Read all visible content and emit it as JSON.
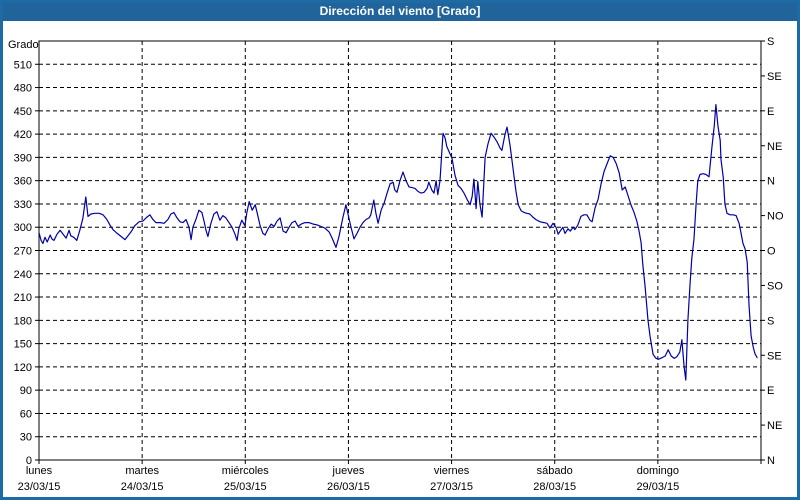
{
  "window": {
    "title": "Dirección del viento [Grado]"
  },
  "colors": {
    "titlebar": "#2268a2",
    "frame": "#1e6aa5",
    "series_line": "#0000a8",
    "grid": "#000000",
    "background": "#ffffff",
    "text": "#000000",
    "title_text": "#ffffff"
  },
  "chart_data": {
    "type": "line",
    "title": "Dirección del viento [Grado]",
    "ylabel": "Grado",
    "grid": true,
    "y_axis": {
      "min": 0,
      "max": 540,
      "tick_step": 30,
      "tick_labels": [
        0,
        30,
        60,
        90,
        120,
        150,
        180,
        210,
        240,
        270,
        300,
        330,
        360,
        390,
        420,
        450,
        480,
        510
      ]
    },
    "right_axis": {
      "tick_step": 45,
      "ticks": [
        {
          "value": 540,
          "label": "S"
        },
        {
          "value": 495,
          "label": "SE"
        },
        {
          "value": 450,
          "label": "E"
        },
        {
          "value": 405,
          "label": "NE"
        },
        {
          "value": 360,
          "label": "N"
        },
        {
          "value": 315,
          "label": "NO"
        },
        {
          "value": 270,
          "label": "O"
        },
        {
          "value": 225,
          "label": "SO"
        },
        {
          "value": 180,
          "label": "S"
        },
        {
          "value": 135,
          "label": "SE"
        },
        {
          "value": 90,
          "label": "E"
        },
        {
          "value": 45,
          "label": "NE"
        },
        {
          "value": 0,
          "label": "N"
        }
      ]
    },
    "x_axis": {
      "unit": "hours",
      "min": 0,
      "max": 168,
      "day_boundaries": [
        0,
        24,
        48,
        72,
        96,
        120,
        144,
        168
      ],
      "days": [
        {
          "name": "lunes",
          "date": "23/03/15",
          "t": 0
        },
        {
          "name": "martes",
          "date": "24/03/15",
          "t": 24
        },
        {
          "name": "miércoles",
          "date": "25/03/15",
          "t": 48
        },
        {
          "name": "jueves",
          "date": "26/03/15",
          "t": 72
        },
        {
          "name": "viernes",
          "date": "27/03/15",
          "t": 96
        },
        {
          "name": "sábado",
          "date": "28/03/15",
          "t": 120
        },
        {
          "name": "domingo",
          "date": "29/03/15",
          "t": 144
        }
      ]
    },
    "series": [
      {
        "name": "Dirección del viento",
        "points": [
          [
            0,
            293
          ],
          [
            0.5,
            283
          ],
          [
            0.9,
            279
          ],
          [
            1.4,
            287
          ],
          [
            1.9,
            281
          ],
          [
            2.6,
            290
          ],
          [
            3,
            285
          ],
          [
            3.5,
            283
          ],
          [
            4.2,
            291
          ],
          [
            4.9,
            296
          ],
          [
            5.6,
            291
          ],
          [
            6.3,
            286
          ],
          [
            7,
            296
          ],
          [
            7.4,
            289
          ],
          [
            8.1,
            287
          ],
          [
            8.8,
            283
          ],
          [
            9.5,
            296
          ],
          [
            10.2,
            311
          ],
          [
            10.9,
            339
          ],
          [
            11.4,
            314
          ],
          [
            12.1,
            317
          ],
          [
            13,
            318
          ],
          [
            14,
            318
          ],
          [
            14.9,
            316
          ],
          [
            15.8,
            310
          ],
          [
            16.5,
            303
          ],
          [
            17.2,
            297
          ],
          [
            18.2,
            292
          ],
          [
            19.1,
            288
          ],
          [
            20,
            284
          ],
          [
            20.7,
            289
          ],
          [
            21.4,
            294
          ],
          [
            22.3,
            302
          ],
          [
            23.3,
            307
          ],
          [
            24.2,
            308
          ],
          [
            25.1,
            313
          ],
          [
            25.8,
            316
          ],
          [
            26.5,
            310
          ],
          [
            27.2,
            306
          ],
          [
            28.2,
            306
          ],
          [
            29.1,
            305
          ],
          [
            30,
            310
          ],
          [
            30.7,
            317
          ],
          [
            31.4,
            319
          ],
          [
            32.1,
            312
          ],
          [
            32.8,
            307
          ],
          [
            33.5,
            306
          ],
          [
            34.2,
            310
          ],
          [
            34.9,
            300
          ],
          [
            35.4,
            284
          ],
          [
            35.8,
            300
          ],
          [
            36.5,
            310
          ],
          [
            37.2,
            322
          ],
          [
            37.9,
            319
          ],
          [
            38.4,
            308
          ],
          [
            38.9,
            295
          ],
          [
            39.3,
            288
          ],
          [
            40,
            305
          ],
          [
            40.7,
            317
          ],
          [
            41.4,
            320
          ],
          [
            42.1,
            309
          ],
          [
            42.8,
            315
          ],
          [
            43.5,
            312
          ],
          [
            44.2,
            306
          ],
          [
            44.9,
            300
          ],
          [
            45.6,
            291
          ],
          [
            46.1,
            283
          ],
          [
            46.5,
            298
          ],
          [
            47.2,
            309
          ],
          [
            47.9,
            302
          ],
          [
            48.4,
            320
          ],
          [
            48.9,
            333
          ],
          [
            49.6,
            322
          ],
          [
            50.3,
            329
          ],
          [
            50.7,
            320
          ],
          [
            51.4,
            303
          ],
          [
            52.1,
            292
          ],
          [
            52.6,
            290
          ],
          [
            53.3,
            298
          ],
          [
            54,
            304
          ],
          [
            54.7,
            301
          ],
          [
            55.4,
            308
          ],
          [
            56.1,
            312
          ],
          [
            56.8,
            295
          ],
          [
            57.5,
            293
          ],
          [
            58.2,
            300
          ],
          [
            58.9,
            306
          ],
          [
            59.6,
            308
          ],
          [
            60.3,
            301
          ],
          [
            61,
            304
          ],
          [
            61.9,
            306
          ],
          [
            62.8,
            306
          ],
          [
            63.8,
            304
          ],
          [
            64.7,
            303
          ],
          [
            65.6,
            301
          ],
          [
            66.5,
            299
          ],
          [
            67.5,
            294
          ],
          [
            68.2,
            286
          ],
          [
            69.1,
            274
          ],
          [
            69.8,
            288
          ],
          [
            70.7,
            312
          ],
          [
            71.4,
            329
          ],
          [
            71.9,
            317
          ],
          [
            72.6,
            300
          ],
          [
            73.3,
            285
          ],
          [
            74,
            292
          ],
          [
            74.7,
            300
          ],
          [
            75.4,
            306
          ],
          [
            76.1,
            310
          ],
          [
            76.8,
            312
          ],
          [
            77.2,
            316
          ],
          [
            77.9,
            335
          ],
          [
            78.4,
            318
          ],
          [
            78.9,
            305
          ],
          [
            79.6,
            322
          ],
          [
            80.3,
            331
          ],
          [
            81,
            344
          ],
          [
            81.7,
            356
          ],
          [
            82.4,
            358
          ],
          [
            82.8,
            348
          ],
          [
            83.3,
            345
          ],
          [
            84,
            360
          ],
          [
            84.7,
            371
          ],
          [
            85.4,
            360
          ],
          [
            86.1,
            352
          ],
          [
            86.8,
            351
          ],
          [
            87.5,
            350
          ],
          [
            88.2,
            346
          ],
          [
            88.9,
            344
          ],
          [
            89.6,
            345
          ],
          [
            90.3,
            350
          ],
          [
            90.7,
            358
          ],
          [
            91.4,
            348
          ],
          [
            91.9,
            344
          ],
          [
            92.4,
            360
          ],
          [
            92.8,
            342
          ],
          [
            93.3,
            360
          ],
          [
            94,
            421
          ],
          [
            94.5,
            415
          ],
          [
            94.9,
            404
          ],
          [
            95.6,
            395
          ],
          [
            96.1,
            389
          ],
          [
            96.8,
            367
          ],
          [
            97.5,
            354
          ],
          [
            98.2,
            350
          ],
          [
            98.9,
            344
          ],
          [
            99.6,
            336
          ],
          [
            100.3,
            329
          ],
          [
            100.8,
            340
          ],
          [
            101.2,
            362
          ],
          [
            101.7,
            324
          ],
          [
            102.1,
            359
          ],
          [
            102.6,
            330
          ],
          [
            103.1,
            313
          ],
          [
            103.8,
            390
          ],
          [
            104.5,
            408
          ],
          [
            105.2,
            421
          ],
          [
            105.9,
            416
          ],
          [
            106.6,
            410
          ],
          [
            107.3,
            402
          ],
          [
            107.7,
            399
          ],
          [
            108.4,
            419
          ],
          [
            108.9,
            429
          ],
          [
            109.6,
            406
          ],
          [
            110.3,
            376
          ],
          [
            111,
            346
          ],
          [
            111.5,
            329
          ],
          [
            112.2,
            321
          ],
          [
            112.9,
            319
          ],
          [
            113.5,
            318
          ],
          [
            114.2,
            317
          ],
          [
            114.9,
            313
          ],
          [
            115.6,
            310
          ],
          [
            116.6,
            307
          ],
          [
            117.5,
            306
          ],
          [
            118.2,
            305
          ],
          [
            118.9,
            299
          ],
          [
            119.6,
            305
          ],
          [
            120.3,
            300
          ],
          [
            120.8,
            291
          ],
          [
            121.5,
            297
          ],
          [
            121.9,
            300
          ],
          [
            122.4,
            292
          ],
          [
            123.1,
            298
          ],
          [
            123.6,
            295
          ],
          [
            124.3,
            300
          ],
          [
            124.7,
            297
          ],
          [
            125.4,
            303
          ],
          [
            126.1,
            314
          ],
          [
            126.8,
            316
          ],
          [
            127.5,
            316
          ],
          [
            128.2,
            309
          ],
          [
            128.7,
            307
          ],
          [
            129.4,
            325
          ],
          [
            130.1,
            336
          ],
          [
            130.8,
            356
          ],
          [
            131.5,
            372
          ],
          [
            132.2,
            382
          ],
          [
            132.9,
            392
          ],
          [
            133.6,
            390
          ],
          [
            134.3,
            382
          ],
          [
            135,
            370
          ],
          [
            135.7,
            348
          ],
          [
            136.4,
            352
          ],
          [
            137.1,
            340
          ],
          [
            137.8,
            328
          ],
          [
            138.4,
            320
          ],
          [
            139.1,
            308
          ],
          [
            139.6,
            296
          ],
          [
            140.1,
            280
          ],
          [
            140.5,
            252
          ],
          [
            141,
            225
          ],
          [
            141.7,
            180
          ],
          [
            142.2,
            159
          ],
          [
            142.9,
            136
          ],
          [
            143.6,
            131
          ],
          [
            144.3,
            130
          ],
          [
            145,
            132
          ],
          [
            145.7,
            134
          ],
          [
            146.4,
            142
          ],
          [
            147.1,
            134
          ],
          [
            147.8,
            131
          ],
          [
            148.4,
            133
          ],
          [
            149.1,
            139
          ],
          [
            149.6,
            155
          ],
          [
            150.1,
            120
          ],
          [
            150.5,
            103
          ],
          [
            151,
            180
          ],
          [
            151.5,
            228
          ],
          [
            151.9,
            260
          ],
          [
            152.4,
            285
          ],
          [
            152.9,
            330
          ],
          [
            153.3,
            360
          ],
          [
            153.8,
            368
          ],
          [
            154.5,
            369
          ],
          [
            155.2,
            368
          ],
          [
            155.9,
            365
          ],
          [
            156.6,
            404
          ],
          [
            157.1,
            430
          ],
          [
            157.5,
            458
          ],
          [
            158,
            430
          ],
          [
            158.5,
            412
          ],
          [
            158.7,
            387
          ],
          [
            159.2,
            365
          ],
          [
            159.6,
            330
          ],
          [
            160.1,
            318
          ],
          [
            160.8,
            316
          ],
          [
            161.5,
            316
          ],
          [
            162.2,
            315
          ],
          [
            162.9,
            305
          ],
          [
            163.3,
            294
          ],
          [
            163.8,
            279
          ],
          [
            164.3,
            272
          ],
          [
            164.8,
            255
          ],
          [
            165.2,
            200
          ],
          [
            165.7,
            160
          ],
          [
            166.2,
            145
          ],
          [
            166.6,
            137
          ],
          [
            167.1,
            132
          ]
        ]
      }
    ]
  }
}
